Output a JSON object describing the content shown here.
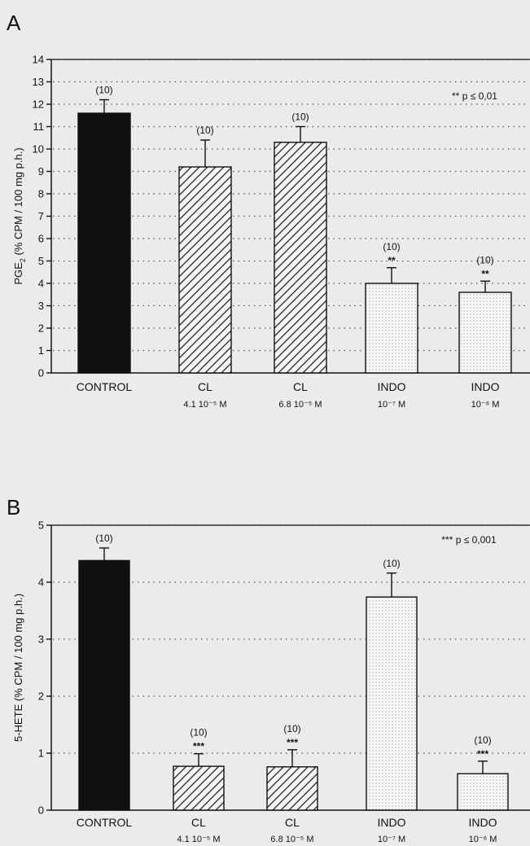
{
  "colors": {
    "background": "#ebebeb",
    "axis": "#111111",
    "control_fill": "#111111",
    "cl_fill": "hatched",
    "indo_fill": "dotted",
    "gridline": "#555555"
  },
  "chart_data": [
    {
      "panel": "A",
      "type": "bar",
      "ylabel_main": "PGE",
      "ylabel_sub": "2",
      "ylabel_rest": " (% CPM / 100 mg p.h.)",
      "ylim": [
        0,
        14
      ],
      "yticks": [
        0,
        1,
        2,
        3,
        4,
        5,
        6,
        7,
        8,
        9,
        10,
        11,
        12,
        13,
        14
      ],
      "grid": "dotted horizontal",
      "significance_note": "** p ≤ 0,01",
      "categories": [
        {
          "label": "CONTROL",
          "sublabel": "",
          "value": 11.6,
          "error": 0.6,
          "n_label": "(10)",
          "sig": "",
          "fill": "solid"
        },
        {
          "label": "CL",
          "sublabel": "4.1 10⁻⁵ M",
          "value": 9.2,
          "error": 1.2,
          "n_label": "(10)",
          "sig": "",
          "fill": "hatched"
        },
        {
          "label": "CL",
          "sublabel": "6.8 10⁻⁵ M",
          "value": 10.3,
          "error": 0.7,
          "n_label": "(10)",
          "sig": "",
          "fill": "hatched"
        },
        {
          "label": "INDO",
          "sublabel": "10⁻⁷ M",
          "value": 4.0,
          "error": 0.7,
          "n_label": "(10)",
          "sig": "**",
          "fill": "dotted"
        },
        {
          "label": "INDO",
          "sublabel": "10⁻⁶ M",
          "value": 3.6,
          "error": 0.5,
          "n_label": "(10)",
          "sig": "**",
          "fill": "dotted"
        }
      ]
    },
    {
      "panel": "B",
      "type": "bar",
      "ylabel_main": "5-HETE",
      "ylabel_sub": "",
      "ylabel_rest": " (% CPM / 100 mg p.h.)",
      "ylim": [
        0,
        5
      ],
      "yticks": [
        0,
        1,
        2,
        3,
        4,
        5
      ],
      "grid": "dotted horizontal",
      "significance_note": "*** p ≤ 0,001",
      "categories": [
        {
          "label": "CONTROL",
          "sublabel": "",
          "value": 4.38,
          "error": 0.22,
          "n_label": "(10)",
          "sig": "",
          "fill": "solid"
        },
        {
          "label": "CL",
          "sublabel": "4.1 10⁻⁵ M",
          "value": 0.77,
          "error": 0.22,
          "n_label": "(10)",
          "sig": "***",
          "fill": "hatched"
        },
        {
          "label": "CL",
          "sublabel": "6.8 10⁻⁵ M",
          "value": 0.76,
          "error": 0.3,
          "n_label": "(10)",
          "sig": "***",
          "fill": "hatched"
        },
        {
          "label": "INDO",
          "sublabel": "10⁻⁷ M",
          "value": 3.74,
          "error": 0.42,
          "n_label": "(10)",
          "sig": "",
          "fill": "dotted"
        },
        {
          "label": "INDO",
          "sublabel": "10⁻⁶ M",
          "value": 0.64,
          "error": 0.22,
          "n_label": "(10)",
          "sig": "***",
          "fill": "dotted"
        }
      ]
    }
  ]
}
